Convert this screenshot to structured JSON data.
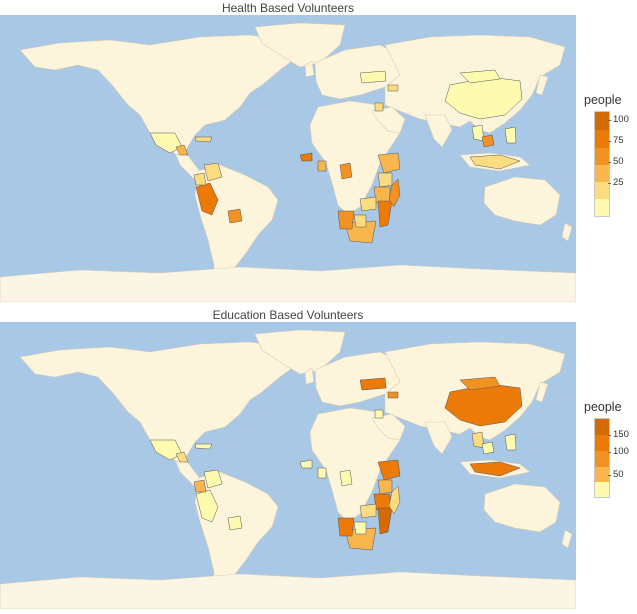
{
  "colors": {
    "ocean": "#a8c8e6",
    "land": "#fdf4dc",
    "border": "#d6ccb6",
    "ice": "#fbf5e6",
    "scale": [
      "#fefab0",
      "#fcdc80",
      "#f9b64e",
      "#f29222",
      "#ec7a08",
      "#d66a02"
    ]
  },
  "maps": [
    {
      "title": "Health Based Volunteers",
      "legend": {
        "title": "people",
        "ticks": [
          "100",
          "75",
          "50",
          "25"
        ]
      }
    },
    {
      "title": "Education Based Volunteers",
      "legend": {
        "title": "people",
        "ticks": [
          "150",
          "100",
          "50"
        ]
      }
    }
  ]
}
